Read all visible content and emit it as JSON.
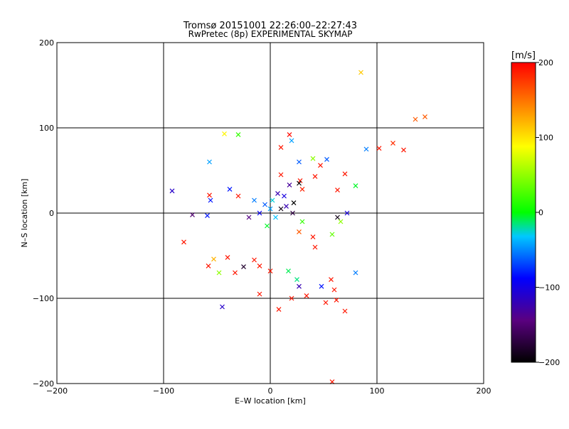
{
  "chart_data": {
    "type": "scatter",
    "title": "Tromsø 20151001 22:26:00–22:27:43",
    "subtitle": "RwPretec (8p) EXPERIMENTAL SKYMAP",
    "xlabel": "E–W location [km]",
    "ylabel": "N–S location [km]",
    "xlim": [
      -200,
      200
    ],
    "ylim": [
      -200,
      200
    ],
    "xticks": [
      -200,
      -100,
      0,
      100,
      200
    ],
    "yticks": [
      -200,
      -100,
      0,
      100,
      200
    ],
    "xtick_labels": [
      "−200",
      "−100",
      "0",
      "100",
      "200"
    ],
    "ytick_labels": [
      "−200",
      "−100",
      "0",
      "100",
      "200"
    ],
    "grid": true,
    "colorbar": {
      "label": "[m/s]",
      "range": [
        -200,
        200
      ],
      "ticks": [
        -200,
        -100,
        0,
        100,
        200
      ],
      "tick_labels": [
        "−200",
        "−100",
        "0",
        "100",
        "200"
      ],
      "colors": [
        "#000000",
        "#5a0080",
        "#0000ff",
        "#00c8ff",
        "#00ff00",
        "#ffff00",
        "#ff8000",
        "#ff0000"
      ]
    },
    "markers": [
      {
        "symbol": "cross",
        "x": 85,
        "y": 165,
        "v": 110
      },
      {
        "symbol": "cross",
        "x": 136,
        "y": 110,
        "v": 160
      },
      {
        "symbol": "cross",
        "x": 145,
        "y": 113,
        "v": 160
      },
      {
        "symbol": "cross",
        "x": 115,
        "y": 82,
        "v": 180
      },
      {
        "symbol": "cross",
        "x": 125,
        "y": 74,
        "v": 190
      },
      {
        "symbol": "cross",
        "x": 102,
        "y": 76,
        "v": 190
      },
      {
        "symbol": "cross",
        "x": 90,
        "y": 75,
        "v": -50
      },
      {
        "symbol": "cross",
        "x": -43,
        "y": 93,
        "v": 90
      },
      {
        "symbol": "cross",
        "x": -30,
        "y": 92,
        "v": 40
      },
      {
        "symbol": "cross",
        "x": 20,
        "y": 85,
        "v": -40
      },
      {
        "symbol": "cross",
        "x": 10,
        "y": 77,
        "v": 190
      },
      {
        "symbol": "cross",
        "x": 18,
        "y": 92,
        "v": 195
      },
      {
        "symbol": "cross",
        "x": -57,
        "y": 60,
        "v": -40
      },
      {
        "symbol": "cross",
        "x": 40,
        "y": 64,
        "v": 60
      },
      {
        "symbol": "cross",
        "x": 53,
        "y": 63,
        "v": -60
      },
      {
        "symbol": "cross",
        "x": 47,
        "y": 56,
        "v": 190
      },
      {
        "symbol": "cross",
        "x": 27,
        "y": 60,
        "v": -60
      },
      {
        "symbol": "cross",
        "x": 70,
        "y": 46,
        "v": 190
      },
      {
        "symbol": "cross",
        "x": 10,
        "y": 45,
        "v": 190
      },
      {
        "symbol": "cross",
        "x": 28,
        "y": 38,
        "v": 190
      },
      {
        "symbol": "cross",
        "x": 42,
        "y": 43,
        "v": 190
      },
      {
        "symbol": "cross",
        "x": 27,
        "y": 35,
        "v": -200
      },
      {
        "symbol": "cross",
        "x": 18,
        "y": 33,
        "v": -130
      },
      {
        "symbol": "cross",
        "x": -38,
        "y": 28,
        "v": -80
      },
      {
        "symbol": "cross",
        "x": -92,
        "y": 26,
        "v": -110
      },
      {
        "symbol": "cross",
        "x": -57,
        "y": 21,
        "v": 190
      },
      {
        "symbol": "cross",
        "x": -56,
        "y": 15,
        "v": -80
      },
      {
        "symbol": "cross",
        "x": -30,
        "y": 20,
        "v": 190
      },
      {
        "symbol": "cross",
        "x": 63,
        "y": 27,
        "v": 190
      },
      {
        "symbol": "cross",
        "x": 80,
        "y": 32,
        "v": 20
      },
      {
        "symbol": "cross",
        "x": 30,
        "y": 28,
        "v": 185
      },
      {
        "symbol": "cross",
        "x": 7,
        "y": 23,
        "v": -120
      },
      {
        "symbol": "cross",
        "x": 22,
        "y": 12,
        "v": -200
      },
      {
        "symbol": "cross",
        "x": 13,
        "y": 20,
        "v": -100
      },
      {
        "symbol": "cross",
        "x": -73,
        "y": -2,
        "v": -150
      },
      {
        "symbol": "cross",
        "x": -59,
        "y": -3,
        "v": -80
      },
      {
        "symbol": "cross",
        "x": 10,
        "y": 5,
        "v": -190
      },
      {
        "symbol": "cross",
        "x": 21,
        "y": 0,
        "v": -170
      },
      {
        "symbol": "cross",
        "x": 72,
        "y": 0,
        "v": -100
      },
      {
        "symbol": "cross",
        "x": 63,
        "y": -5,
        "v": -190
      },
      {
        "symbol": "cross",
        "x": 66,
        "y": -10,
        "v": 60
      },
      {
        "symbol": "cross",
        "x": 58,
        "y": -25,
        "v": 50
      },
      {
        "symbol": "cross",
        "x": 40,
        "y": -28,
        "v": 190
      },
      {
        "symbol": "cross",
        "x": 27,
        "y": -22,
        "v": 160
      },
      {
        "symbol": "cross",
        "x": 42,
        "y": -40,
        "v": 190
      },
      {
        "symbol": "cross",
        "x": -81,
        "y": -34,
        "v": 190
      },
      {
        "symbol": "cross",
        "x": -53,
        "y": -54,
        "v": 120
      },
      {
        "symbol": "cross",
        "x": -40,
        "y": -52,
        "v": 190
      },
      {
        "symbol": "cross",
        "x": -58,
        "y": -62,
        "v": 190
      },
      {
        "symbol": "cross",
        "x": -48,
        "y": -70,
        "v": 60
      },
      {
        "symbol": "cross",
        "x": -33,
        "y": -70,
        "v": 190
      },
      {
        "symbol": "cross",
        "x": -25,
        "y": -63,
        "v": -180
      },
      {
        "symbol": "cross",
        "x": -15,
        "y": -55,
        "v": 190
      },
      {
        "symbol": "cross",
        "x": -10,
        "y": -62,
        "v": 190
      },
      {
        "symbol": "cross",
        "x": 0,
        "y": -68,
        "v": 190
      },
      {
        "symbol": "cross",
        "x": 17,
        "y": -68,
        "v": 10
      },
      {
        "symbol": "cross",
        "x": 25,
        "y": -78,
        "v": 0
      },
      {
        "symbol": "cross",
        "x": 27,
        "y": -86,
        "v": -120
      },
      {
        "symbol": "cross",
        "x": 48,
        "y": -86,
        "v": -80
      },
      {
        "symbol": "cross",
        "x": 80,
        "y": -70,
        "v": -50
      },
      {
        "symbol": "cross",
        "x": 57,
        "y": -78,
        "v": 190
      },
      {
        "symbol": "cross",
        "x": 60,
        "y": -90,
        "v": 190
      },
      {
        "symbol": "cross",
        "x": -10,
        "y": -95,
        "v": 190
      },
      {
        "symbol": "cross",
        "x": 20,
        "y": -100,
        "v": 190
      },
      {
        "symbol": "cross",
        "x": 34,
        "y": -97,
        "v": 190
      },
      {
        "symbol": "cross",
        "x": 8,
        "y": -113,
        "v": 190
      },
      {
        "symbol": "cross",
        "x": -45,
        "y": -110,
        "v": -110
      },
      {
        "symbol": "cross",
        "x": 52,
        "y": -105,
        "v": 190
      },
      {
        "symbol": "cross",
        "x": 62,
        "y": -102,
        "v": 190
      },
      {
        "symbol": "cross",
        "x": 70,
        "y": -115,
        "v": 190
      },
      {
        "symbol": "cross",
        "x": 58,
        "y": -198,
        "v": 190
      },
      {
        "symbol": "cross",
        "x": 0,
        "y": 5,
        "v": -40
      },
      {
        "symbol": "cross",
        "x": -5,
        "y": 10,
        "v": -60
      },
      {
        "symbol": "cross",
        "x": 5,
        "y": -5,
        "v": -30
      },
      {
        "symbol": "cross",
        "x": -10,
        "y": 0,
        "v": -90
      },
      {
        "symbol": "cross",
        "x": 15,
        "y": 8,
        "v": -120
      },
      {
        "symbol": "cross",
        "x": -15,
        "y": 15,
        "v": -50
      },
      {
        "symbol": "cross",
        "x": 2,
        "y": 15,
        "v": -20
      },
      {
        "symbol": "cross",
        "x": -20,
        "y": -5,
        "v": -140
      },
      {
        "symbol": "cross",
        "x": -3,
        "y": -15,
        "v": 20
      },
      {
        "symbol": "cross",
        "x": 30,
        "y": -10,
        "v": 40
      }
    ]
  }
}
